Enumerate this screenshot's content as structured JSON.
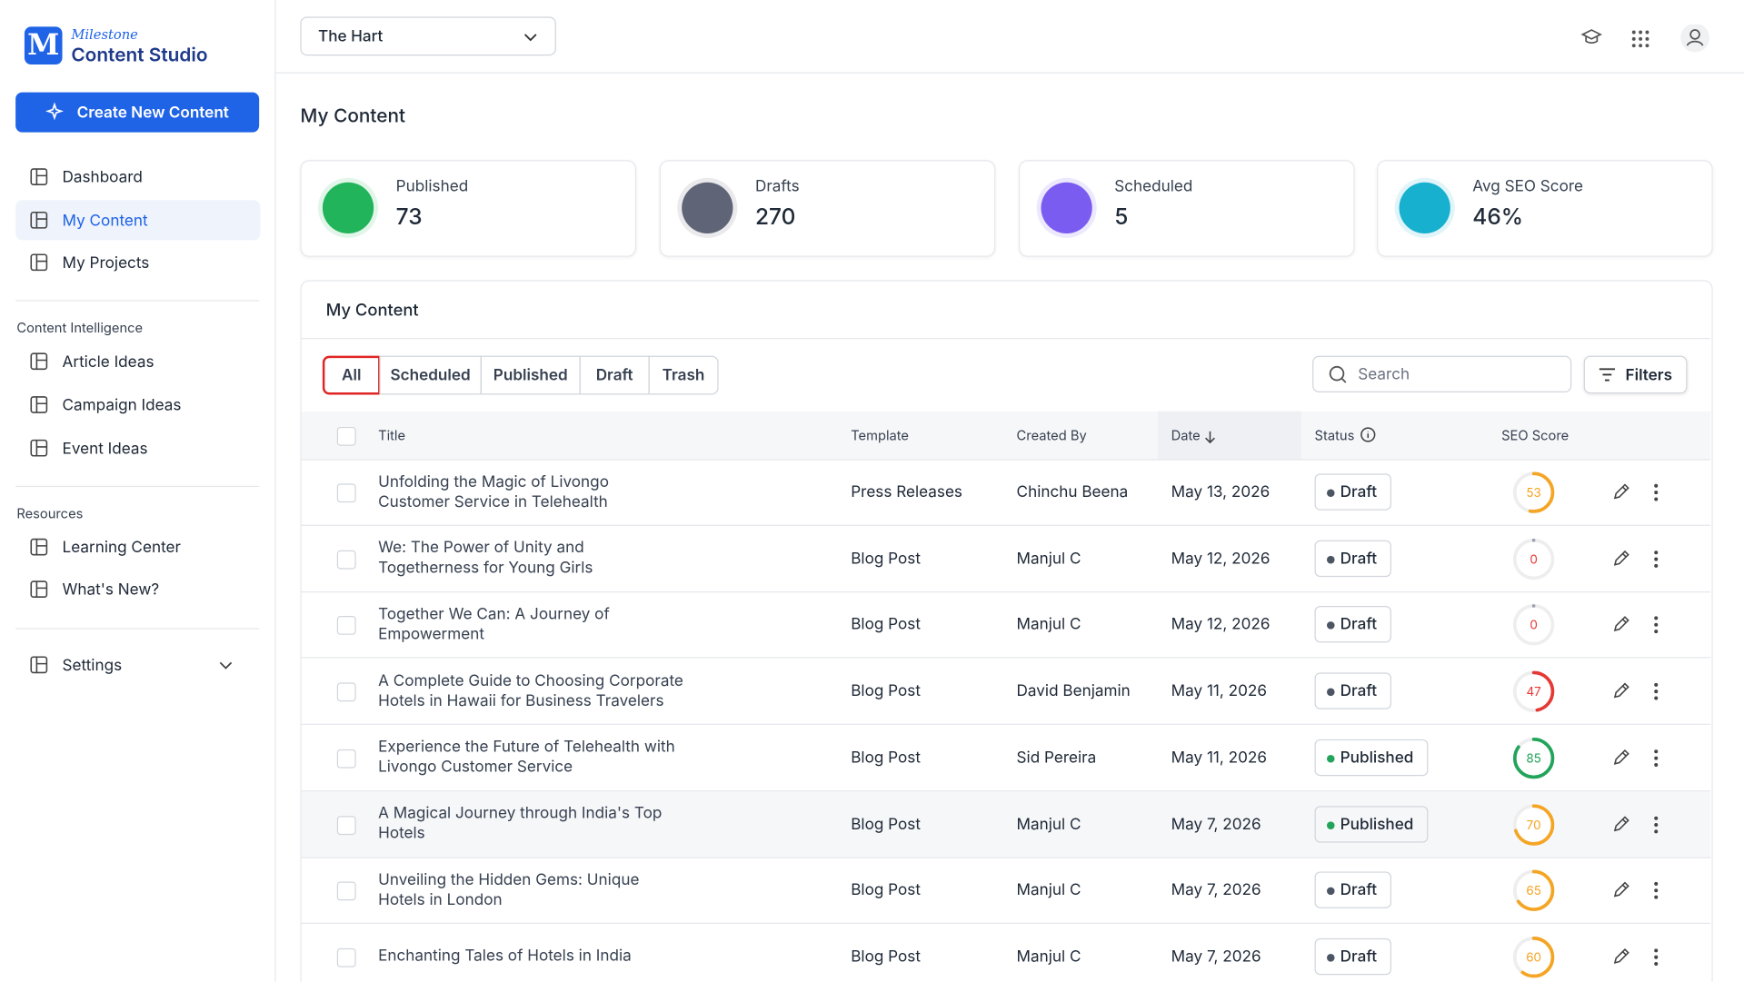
{
  "brand": {
    "small": "Milestone",
    "name": "Content Studio"
  },
  "create_button": "Create New Content",
  "nav": [
    "Dashboard",
    "My Content",
    "My Projects"
  ],
  "sections": [
    {
      "title": "Content Intelligence",
      "items": [
        "Article Ideas",
        "Campaign Ideas",
        "Event Ideas"
      ]
    },
    {
      "title": "Resources",
      "items": [
        "Learning Center",
        "What's New?"
      ]
    }
  ],
  "settings": "Settings",
  "property_select": "The Hart",
  "page_title": "My Content",
  "stats": [
    {
      "label": "Published",
      "value": "73"
    },
    {
      "label": "Drafts",
      "value": "270"
    },
    {
      "label": "Scheduled",
      "value": "5"
    },
    {
      "label": "Avg SEO Score",
      "value": "46%"
    }
  ],
  "panel_title": "My Content",
  "tabs": [
    "All",
    "Scheduled",
    "Published",
    "Draft",
    "Trash"
  ],
  "search_placeholder": "Search",
  "filters": "Filters",
  "table": {
    "columns": [
      "Title",
      "Template",
      "Created By",
      "Date",
      "Status",
      "SEO Score"
    ],
    "rows": [
      [
        "Unfolding the Magic of Livongo Customer Service in Telehealth",
        "Press Releases",
        "Chinchu Beena",
        "May 13, 2026",
        "Draft",
        53
      ],
      [
        "We: The Power of Unity and Togetherness for Young Girls",
        "Blog Post",
        "Manjul C",
        "May 12, 2026",
        "Draft",
        0
      ],
      [
        "Together We Can: A Journey of Empowerment",
        "Blog Post",
        "Manjul C",
        "May 12, 2026",
        "Draft",
        0
      ],
      [
        "A Complete Guide to Choosing Corporate Hotels in Hawaii for Business Travelers",
        "Blog Post",
        "David Benjamin",
        "May 11, 2026",
        "Draft",
        47
      ],
      [
        "Experience the Future of Telehealth with Livongo Customer Service",
        "Blog Post",
        "Sid Pereira",
        "May 11, 2026",
        "Published",
        85
      ],
      [
        "A Magical Journey through India's Top Hotels",
        "Blog Post",
        "Manjul C",
        "May 7, 2026",
        "Published",
        70
      ],
      [
        "Unveiling the Hidden Gems: Unique Hotels in London",
        "Blog Post",
        "Manjul C",
        "May 7, 2026",
        "Draft",
        65
      ],
      [
        "Enchanting Tales of Hotels in India",
        "Blog Post",
        "Manjul C",
        "May 7, 2026",
        "Draft",
        60
      ]
    ]
  }
}
